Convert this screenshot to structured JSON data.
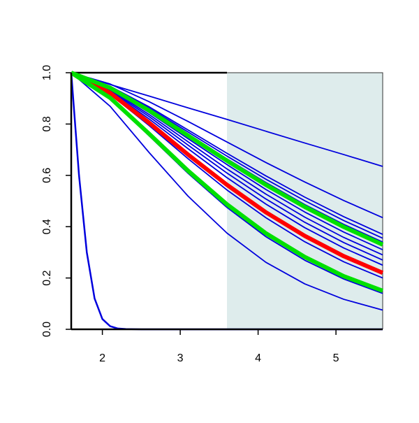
{
  "chart_data": {
    "type": "line",
    "x": [
      1.6,
      2.1,
      2.6,
      3.1,
      3.6,
      4.1,
      4.6,
      5.1,
      5.6
    ],
    "xlim": [
      1.6,
      5.6
    ],
    "ylim": [
      0,
      1
    ],
    "xticks": [
      2,
      3,
      4,
      5
    ],
    "yticks": [
      {
        "value": 0,
        "label": "0.0"
      },
      {
        "value": 0.2,
        "label": "0.2"
      },
      {
        "value": 0.4,
        "label": "0.4"
      },
      {
        "value": 0.6,
        "label": "0.6"
      },
      {
        "value": 0.8,
        "label": "0.8"
      },
      {
        "value": 1,
        "label": "1.0"
      }
    ],
    "shaded_xlim": [
      3.6,
      5.6
    ],
    "shade_color": "#deecec",
    "series": [
      {
        "color": "#0000dd",
        "linewidth": 1.8,
        "values": [
          1,
          0.954,
          0.909,
          0.863,
          0.818,
          0.772,
          0.726,
          0.681,
          0.635
        ]
      },
      {
        "color": "#0000dd",
        "linewidth": 1.8,
        "values": [
          1,
          0.956,
          0.887,
          0.81,
          0.73,
          0.65,
          0.574,
          0.502,
          0.435
        ]
      },
      {
        "color": "#0000dd",
        "linewidth": 1.8,
        "values": [
          1,
          0.947,
          0.867,
          0.777,
          0.686,
          0.598,
          0.515,
          0.439,
          0.37
        ]
      },
      {
        "color": "#0000dd",
        "linewidth": 1.8,
        "values": [
          1,
          0.945,
          0.862,
          0.769,
          0.675,
          0.585,
          0.501,
          0.424,
          0.355
        ]
      },
      {
        "color": "#0000dd",
        "linewidth": 1.8,
        "values": [
          1,
          0.943,
          0.856,
          0.761,
          0.664,
          0.572,
          0.486,
          0.409,
          0.34
        ]
      },
      {
        "color": "#0000dd",
        "linewidth": 1.8,
        "values": [
          1,
          0.938,
          0.845,
          0.743,
          0.642,
          0.545,
          0.457,
          0.379,
          0.31
        ]
      },
      {
        "color": "#0000dd",
        "linewidth": 1.8,
        "values": [
          1,
          0.935,
          0.837,
          0.731,
          0.625,
          0.527,
          0.437,
          0.358,
          0.29
        ]
      },
      {
        "color": "#0000dd",
        "linewidth": 1.8,
        "values": [
          1,
          0.931,
          0.829,
          0.718,
          0.609,
          0.508,
          0.417,
          0.338,
          0.27
        ]
      },
      {
        "color": "#0000dd",
        "linewidth": 1.8,
        "values": [
          1,
          0.927,
          0.82,
          0.704,
          0.591,
          0.488,
          0.396,
          0.317,
          0.25
        ]
      },
      {
        "color": "#0000dd",
        "linewidth": 1.8,
        "values": [
          1,
          0.916,
          0.794,
          0.665,
          0.543,
          0.435,
          0.341,
          0.263,
          0.2
        ]
      },
      {
        "color": "#0000dd",
        "linewidth": 1.8,
        "values": [
          1,
          0.899,
          0.754,
          0.608,
          0.475,
          0.361,
          0.269,
          0.196,
          0.14
        ]
      },
      {
        "color": "#0000dd",
        "linewidth": 1.8,
        "values": [
          1,
          0.869,
          0.689,
          0.519,
          0.375,
          0.261,
          0.177,
          0.117,
          0.075
        ]
      },
      {
        "color": "#0000dd",
        "linewidth": 2.5,
        "x": [
          1.6,
          1.7,
          1.8,
          1.9,
          2.0,
          2.1,
          2.2,
          2.3,
          2.5,
          3,
          4,
          5,
          5.6
        ],
        "values": [
          1,
          0.6,
          0.3,
          0.12,
          0.04,
          0.012,
          0.003,
          0.001,
          0,
          0,
          0,
          0,
          0
        ]
      },
      {
        "color": "#ff0000",
        "linewidth": 6,
        "values": [
          1,
          0.921,
          0.805,
          0.681,
          0.563,
          0.456,
          0.364,
          0.285,
          0.22
        ]
      },
      {
        "color": "#00e000",
        "linewidth": 6,
        "values": [
          1,
          0.941,
          0.853,
          0.755,
          0.657,
          0.563,
          0.477,
          0.399,
          0.33
        ]
      },
      {
        "color": "#00e000",
        "linewidth": 6,
        "values": [
          1,
          0.902,
          0.762,
          0.618,
          0.487,
          0.374,
          0.282,
          0.207,
          0.15
        ]
      }
    ]
  }
}
